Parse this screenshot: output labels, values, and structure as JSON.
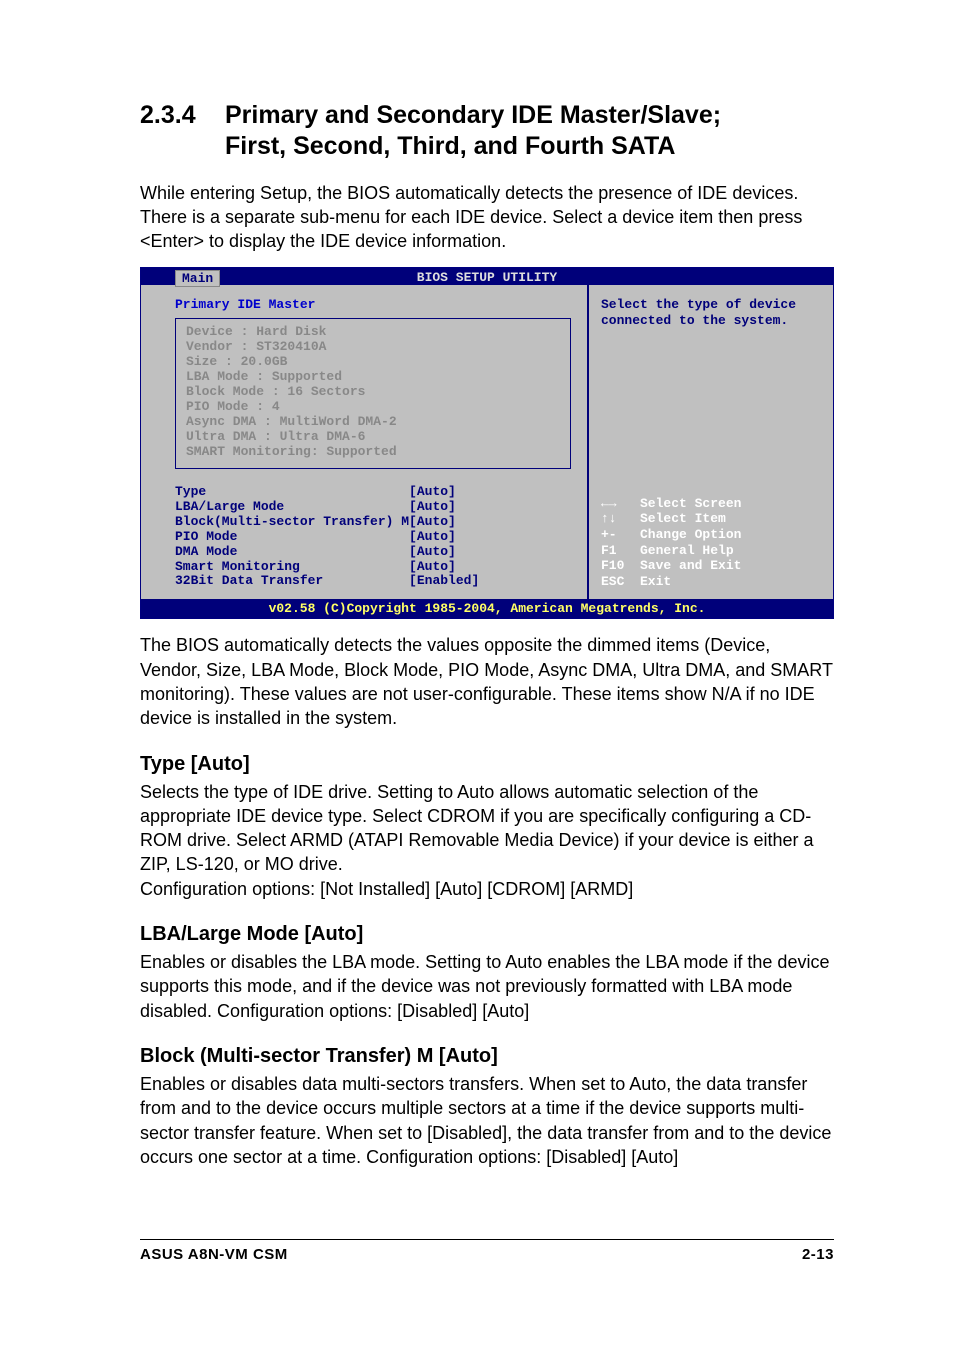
{
  "section": {
    "number": "2.3.4",
    "title_l1": "Primary and Secondary IDE Master/Slave;",
    "title_l2": "First, Second, Third, and Fourth SATA"
  },
  "intro": "While entering Setup, the BIOS automatically detects the presence of IDE devices. There is a separate sub-menu for each IDE device. Select a device item then press <Enter> to display the IDE device information.",
  "bios": {
    "header": "BIOS SETUP UTILITY",
    "tab": "Main",
    "subtitle": "Primary IDE Master",
    "detected": [
      "Device          : Hard Disk",
      "Vendor          : ST320410A",
      "Size            : 20.0GB",
      "LBA Mode        : Supported",
      "Block Mode      : 16 Sectors",
      "PIO Mode        : 4",
      "Async DMA       : MultiWord DMA-2",
      "Ultra DMA       : Ultra DMA-6",
      "SMART Monitoring: Supported"
    ],
    "settings": [
      "Type                          [Auto]",
      "LBA/Large Mode                [Auto]",
      "Block(Multi-sector Transfer) M[Auto]",
      "PIO Mode                      [Auto]",
      "DMA Mode                      [Auto]",
      "Smart Monitoring              [Auto]",
      "32Bit Data Transfer           [Enabled]"
    ],
    "help_top": "Select the type of device connected to the system.",
    "help_bottom": "←→   Select Screen\n↑↓   Select Item\n+-   Change Option\nF1   General Help\nF10  Save and Exit\nESC  Exit",
    "footer": "v02.58 (C)Copyright 1985-2004, American Megatrends, Inc."
  },
  "after_bios": "The BIOS automatically detects the values opposite the dimmed items (Device, Vendor, Size, LBA Mode, Block Mode, PIO Mode, Async DMA, Ultra DMA, and SMART monitoring). These values are not user-configurable. These items show N/A if no IDE device is installed in the system.",
  "type": {
    "heading": "Type [Auto]",
    "body": "Selects the type of IDE drive. Setting to Auto allows automatic selection of the appropriate IDE device type. Select CDROM if you are specifically configuring a CD-ROM drive. Select ARMD (ATAPI Removable Media Device) if your device is either a ZIP, LS-120, or MO drive.\nConfiguration options: [Not Installed] [Auto] [CDROM] [ARMD]"
  },
  "lba": {
    "heading": "LBA/Large Mode [Auto]",
    "body": "Enables or disables the LBA mode. Setting to Auto enables the LBA mode if the device supports this mode, and if the device was not previously formatted with LBA mode disabled. Configuration options: [Disabled] [Auto]"
  },
  "block": {
    "heading": "Block (Multi-sector Transfer) M [Auto]",
    "body": "Enables or disables data multi-sectors transfers. When set to Auto, the data transfer from and to the device occurs multiple sectors at a time if the device supports multi-sector transfer feature. When set to [Disabled], the data transfer from and to the device occurs one sector at a time. Configuration options: [Disabled] [Auto]"
  },
  "footer": {
    "left": "ASUS A8N-VM CSM",
    "right": "2-13"
  },
  "style": {
    "bios_header_bg": "#00007a",
    "bios_body_bg": "#c0c0c0",
    "bios_text": "#00007a",
    "bios_dim_text": "#888888",
    "bios_help_white": "#ffffff",
    "bios_footer_text": "#ffff66"
  }
}
